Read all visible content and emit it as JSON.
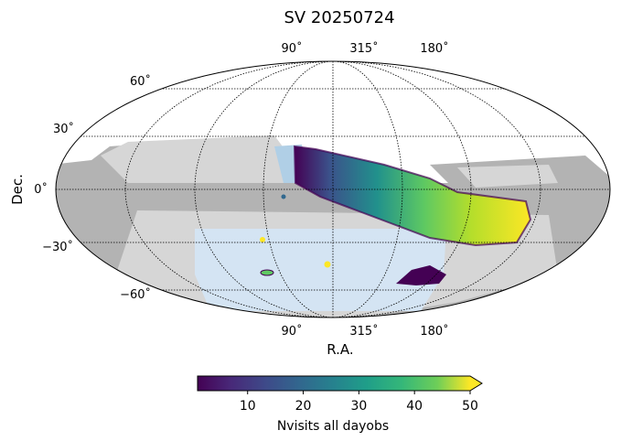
{
  "chart_data": {
    "type": "heatmap",
    "title": "SV 20250724",
    "projection": "mollweide",
    "xlabel": "R.A.",
    "ylabel": "Dec.",
    "ra_tick_labels": [
      "90˚",
      "315˚",
      "180˚"
    ],
    "dec_tick_labels": [
      "60˚",
      "30˚",
      "0˚",
      "−30˚",
      "−60˚"
    ],
    "dec_ticks": [
      60,
      30,
      0,
      -30,
      -60
    ],
    "grid": true,
    "colorbar": {
      "label": "Nvisits all dayobs",
      "ticks": [
        10,
        20,
        30,
        40,
        50
      ],
      "ticklabels": [
        "10",
        "20",
        "30",
        "40",
        "50"
      ],
      "range": [
        1,
        50
      ],
      "extend": "max",
      "colormap": "viridis"
    },
    "colors": {
      "footprint_dark": "#b3b3b3",
      "footprint_light": "#d6d6d6",
      "region_blue": "#d4e4f3",
      "region_blue_dark": "#b0cfe6",
      "viridis": [
        "#440154",
        "#3b528b",
        "#21918c",
        "#5ec962",
        "#fde725"
      ]
    },
    "series": [
      {
        "values": [
          {
            "ra": 300,
            "dec": 10,
            "nvisits": 8
          },
          {
            "ra": 270,
            "dec": 5,
            "nvisits": 18
          },
          {
            "ra": 235,
            "dec": -5,
            "nvisits": 30
          },
          {
            "ra": 200,
            "dec": -15,
            "nvisits": 40
          },
          {
            "ra": 170,
            "dec": -22,
            "nvisits": 47
          }
        ]
      }
    ]
  }
}
